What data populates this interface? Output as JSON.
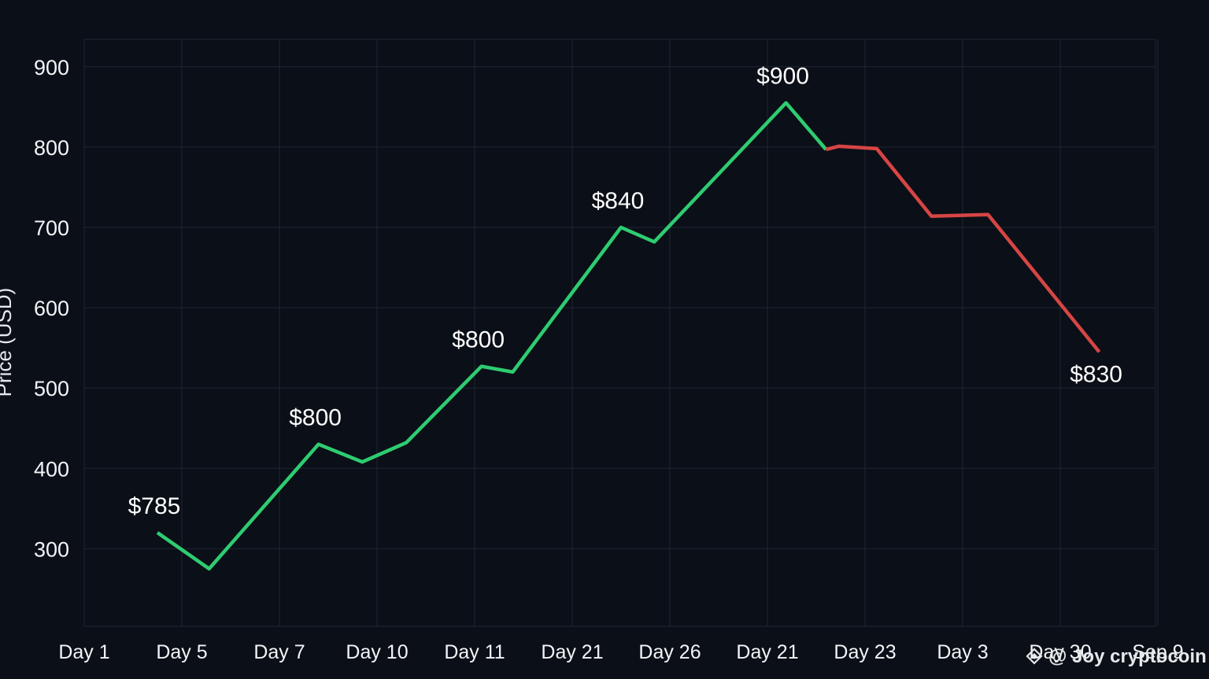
{
  "chart_data": {
    "type": "line",
    "ylabel": "Price (USD)",
    "ylim": [
      200,
      950
    ],
    "yticks": [
      300,
      400,
      500,
      600,
      700,
      800,
      900
    ],
    "categories": [
      "Day 1",
      "Day 5",
      "Day 7",
      "Day 10",
      "Day 11",
      "Day 21",
      "Day 26",
      "Day 21",
      "Day 23",
      "Day 3",
      "Day 30",
      "Sep 9"
    ],
    "grid": true,
    "series": [
      {
        "color": "#2ecc71",
        "points": [
          {
            "x": 0.75,
            "y": 320
          },
          {
            "x": 1.28,
            "y": 275
          },
          {
            "x": 2.4,
            "y": 430
          },
          {
            "x": 2.85,
            "y": 408
          },
          {
            "x": 3.3,
            "y": 432
          },
          {
            "x": 4.07,
            "y": 527
          },
          {
            "x": 4.39,
            "y": 520
          },
          {
            "x": 5.5,
            "y": 700
          },
          {
            "x": 5.84,
            "y": 682
          },
          {
            "x": 7.19,
            "y": 855
          },
          {
            "x": 7.6,
            "y": 797
          }
        ]
      },
      {
        "color": "#d64545",
        "points": [
          {
            "x": 7.6,
            "y": 797
          },
          {
            "x": 7.73,
            "y": 801
          },
          {
            "x": 8.12,
            "y": 798
          },
          {
            "x": 8.68,
            "y": 714
          },
          {
            "x": 9.26,
            "y": 716
          },
          {
            "x": 10.4,
            "y": 545
          }
        ]
      }
    ],
    "annotations": [
      {
        "text": "$785",
        "x": 0.75,
        "y": 320,
        "pos": "above"
      },
      {
        "text": "$800",
        "x": 2.4,
        "y": 430,
        "pos": "above"
      },
      {
        "text": "$800",
        "x": 4.07,
        "y": 527,
        "pos": "above"
      },
      {
        "text": "$840",
        "x": 5.5,
        "y": 700,
        "pos": "above"
      },
      {
        "text": "$900",
        "x": 7.19,
        "y": 855,
        "pos": "above"
      },
      {
        "text": "$830",
        "x": 10.4,
        "y": 545,
        "pos": "below"
      }
    ]
  },
  "watermark": "@ Joy cryptocoin",
  "colors": {
    "background": "#0b0f17",
    "grid": "#1f2633",
    "up": "#2ecc71",
    "down": "#d64545",
    "text": "#f2f4f7"
  }
}
